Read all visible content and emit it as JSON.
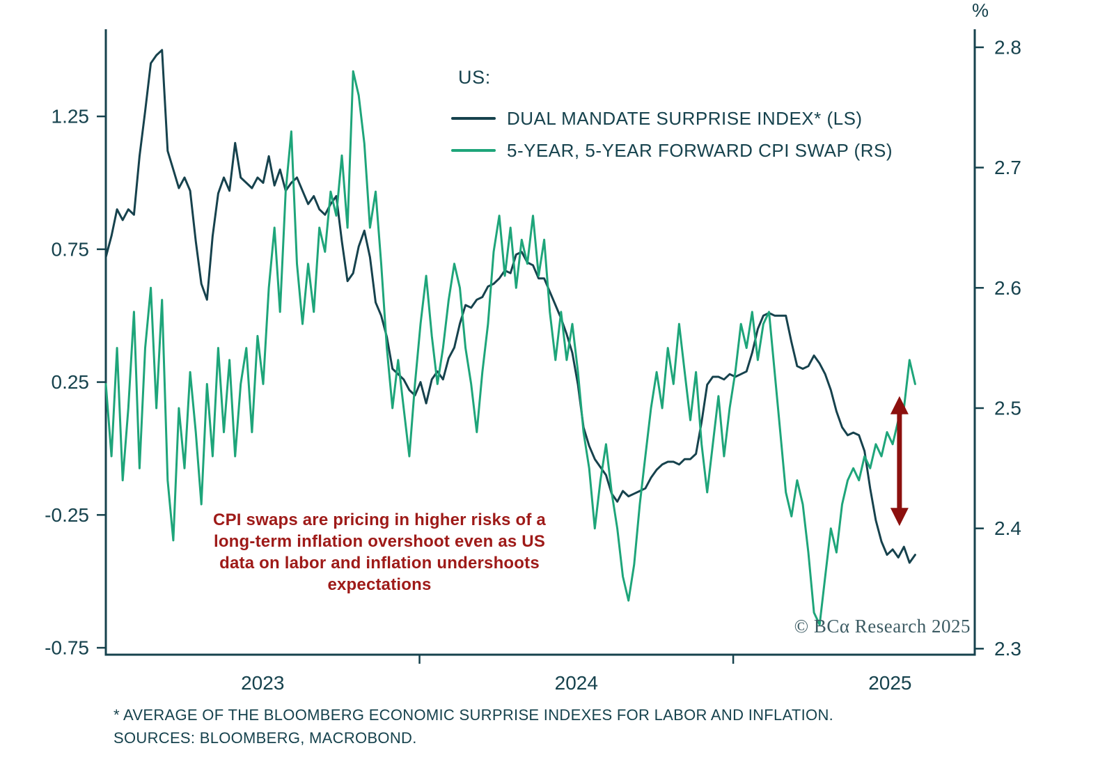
{
  "chart": {
    "text_color": "#16424d",
    "percent_label": "%",
    "legend": {
      "heading": "US:",
      "items": [
        {
          "label": "DUAL MANDATE SURPRISE INDEX* (LS)",
          "color": "#16424d"
        },
        {
          "label": "5-YEAR, 5-YEAR FORWARD CPI SWAP (RS)",
          "color": "#1ea57a"
        }
      ]
    },
    "annotation": {
      "color": "#9e1a18",
      "text_lines": [
        "CPI swaps are pricing in higher risks of a",
        "long-term inflation overshoot even as US",
        "data on labor and inflation undershoots",
        "expectations"
      ]
    },
    "watermark": "© BCα Research 2025",
    "footnote_lines": [
      "* AVERAGE OF THE BLOOMBERG ECONOMIC SURPRISE INDEXES FOR LABOR AND INFLATION.",
      "SOURCES: BLOOMBERG, MACROBOND."
    ]
  },
  "chart_data": {
    "type": "line",
    "title": "US:",
    "legend_position": "top-center",
    "grid": false,
    "x_axis": {
      "xlim": [
        2022.5,
        2025.27
      ],
      "ticks": [
        2023,
        2024,
        2025
      ],
      "tick_labels": [
        "2023",
        "2024",
        "2025"
      ],
      "minor_ticks": [
        2023.5,
        2024.5
      ]
    },
    "left_axis": {
      "ticks": [
        1.25,
        0.75,
        0.25,
        -0.25,
        -0.75
      ],
      "tick_labels": [
        "1.25",
        "0.75",
        "0.25",
        "-0.25",
        "-0.75"
      ],
      "ylim": [
        -0.776,
        1.578
      ]
    },
    "right_axis": {
      "unit": "%",
      "ticks": [
        2.8,
        2.7,
        2.6,
        2.5,
        2.4,
        2.3
      ],
      "tick_labels": [
        "2.8",
        "2.7",
        "2.6",
        "2.5",
        "2.4",
        "2.3"
      ],
      "ylim": [
        2.295,
        2.815
      ]
    },
    "series": [
      {
        "name": "DUAL MANDATE SURPRISE INDEX* (LS)",
        "axis": "left",
        "color": "#16424d",
        "x_start": 2022.5,
        "x_end": 2025.08,
        "values": [
          0.72,
          0.8,
          0.9,
          0.86,
          0.9,
          0.88,
          1.1,
          1.27,
          1.45,
          1.48,
          1.5,
          1.12,
          1.05,
          0.98,
          1.02,
          0.97,
          0.78,
          0.62,
          0.56,
          0.8,
          0.96,
          1.02,
          0.97,
          1.15,
          1.02,
          1.0,
          0.98,
          1.02,
          1.0,
          1.1,
          0.99,
          1.05,
          0.97,
          1.0,
          1.02,
          0.97,
          0.92,
          0.95,
          0.9,
          0.88,
          0.92,
          0.95,
          0.78,
          0.63,
          0.66,
          0.76,
          0.82,
          0.72,
          0.55,
          0.5,
          0.42,
          0.3,
          0.28,
          0.26,
          0.22,
          0.2,
          0.25,
          0.17,
          0.26,
          0.29,
          0.26,
          0.34,
          0.38,
          0.47,
          0.54,
          0.53,
          0.56,
          0.57,
          0.61,
          0.62,
          0.64,
          0.67,
          0.66,
          0.73,
          0.74,
          0.7,
          0.69,
          0.64,
          0.64,
          0.59,
          0.54,
          0.49,
          0.43,
          0.36,
          0.24,
          0.08,
          0.01,
          -0.04,
          -0.07,
          -0.1,
          -0.17,
          -0.2,
          -0.16,
          -0.18,
          -0.17,
          -0.16,
          -0.15,
          -0.11,
          -0.08,
          -0.06,
          -0.05,
          -0.05,
          -0.06,
          -0.04,
          -0.04,
          -0.02,
          0.1,
          0.24,
          0.27,
          0.27,
          0.26,
          0.28,
          0.27,
          0.28,
          0.29,
          0.36,
          0.45,
          0.5,
          0.51,
          0.5,
          0.5,
          0.5,
          0.4,
          0.31,
          0.3,
          0.31,
          0.35,
          0.32,
          0.28,
          0.22,
          0.14,
          0.08,
          0.05,
          0.06,
          0.05,
          -0.01,
          -0.15,
          -0.27,
          -0.35,
          -0.4,
          -0.38,
          -0.41,
          -0.37,
          -0.43,
          -0.4
        ]
      },
      {
        "name": "5-YEAR, 5-YEAR FORWARD CPI SWAP (RS)",
        "axis": "right",
        "color": "#1ea57a",
        "x_start": 2022.5,
        "x_end": 2025.08,
        "values": [
          2.52,
          2.46,
          2.55,
          2.44,
          2.5,
          2.58,
          2.45,
          2.55,
          2.6,
          2.5,
          2.59,
          2.44,
          2.39,
          2.5,
          2.45,
          2.53,
          2.48,
          2.42,
          2.52,
          2.46,
          2.55,
          2.48,
          2.54,
          2.46,
          2.52,
          2.55,
          2.48,
          2.56,
          2.52,
          2.6,
          2.65,
          2.58,
          2.68,
          2.73,
          2.62,
          2.57,
          2.62,
          2.58,
          2.65,
          2.63,
          2.68,
          2.66,
          2.71,
          2.65,
          2.78,
          2.76,
          2.72,
          2.65,
          2.68,
          2.62,
          2.55,
          2.5,
          2.54,
          2.5,
          2.46,
          2.52,
          2.57,
          2.61,
          2.56,
          2.52,
          2.55,
          2.59,
          2.62,
          2.6,
          2.55,
          2.52,
          2.48,
          2.53,
          2.57,
          2.63,
          2.66,
          2.61,
          2.65,
          2.6,
          2.64,
          2.62,
          2.66,
          2.61,
          2.64,
          2.58,
          2.54,
          2.58,
          2.54,
          2.57,
          2.53,
          2.48,
          2.45,
          2.4,
          2.44,
          2.47,
          2.43,
          2.4,
          2.36,
          2.34,
          2.37,
          2.42,
          2.46,
          2.5,
          2.53,
          2.5,
          2.55,
          2.52,
          2.57,
          2.53,
          2.49,
          2.53,
          2.47,
          2.43,
          2.47,
          2.51,
          2.46,
          2.5,
          2.53,
          2.57,
          2.55,
          2.58,
          2.54,
          2.57,
          2.58,
          2.53,
          2.48,
          2.43,
          2.41,
          2.44,
          2.42,
          2.38,
          2.33,
          2.32,
          2.36,
          2.4,
          2.38,
          2.42,
          2.44,
          2.45,
          2.44,
          2.46,
          2.45,
          2.47,
          2.46,
          2.48,
          2.47,
          2.49,
          2.5,
          2.54,
          2.52
        ]
      }
    ],
    "arrow_annotation": {
      "axis": "right",
      "x": 2025.03,
      "y_top": 2.51,
      "y_bottom": 2.402,
      "color": "#8c100e"
    }
  }
}
